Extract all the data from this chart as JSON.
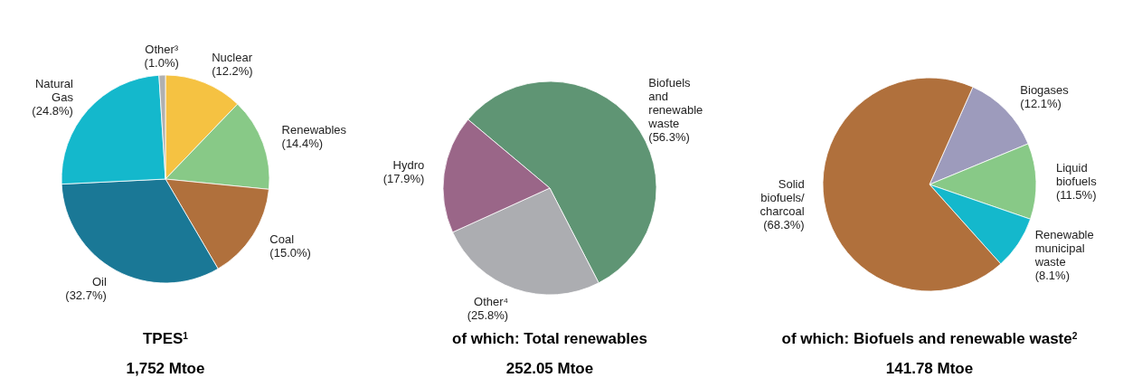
{
  "chart_data": [
    {
      "type": "pie",
      "title": "TPES$^{1}$",
      "subtitle": "1,752 Mtoe",
      "categories": [
        "Nuclear",
        "Renewables",
        "Coal",
        "Oil",
        "Natural Gas",
        "Other³"
      ],
      "values": [
        12.2,
        14.4,
        15.0,
        32.7,
        24.8,
        1.0
      ],
      "colors": [
        "#f5c242",
        "#88c987",
        "#b0703c",
        "#1a7896",
        "#14b8cc",
        "#b0b0b0"
      ],
      "value_labels": [
        "(12.2%)",
        "(14.4%)",
        "(15.0%)",
        "(32.7%)",
        "(24.8%)",
        "(1.0%)"
      ]
    },
    {
      "type": "pie",
      "title": "of which: Total renewables",
      "subtitle": "252.05 Mtoe",
      "categories": [
        "Biofuels and renewable waste",
        "Other⁴",
        "Hydro"
      ],
      "values": [
        56.3,
        25.8,
        17.9
      ],
      "colors": [
        "#5f9574",
        "#acadb1",
        "#9a6688"
      ],
      "value_labels": [
        "(56.3%)",
        "(25.8%)",
        "(17.9%)"
      ]
    },
    {
      "type": "pie",
      "title": "of which: Biofuels and renewable waste$^{2}$",
      "subtitle": "141.78 Mtoe",
      "categories": [
        "Biogases",
        "Liquid biofuels",
        "Renewable municipal waste",
        "Solid biofuels/ charcoal"
      ],
      "values": [
        12.1,
        11.5,
        8.1,
        68.3
      ],
      "colors": [
        "#9d9bbc",
        "#88c987",
        "#14b8cc",
        "#b0703c"
      ],
      "value_labels": [
        "(12.1%)",
        "(11.5%)",
        "(8.1%)",
        "(68.3%)"
      ]
    }
  ]
}
